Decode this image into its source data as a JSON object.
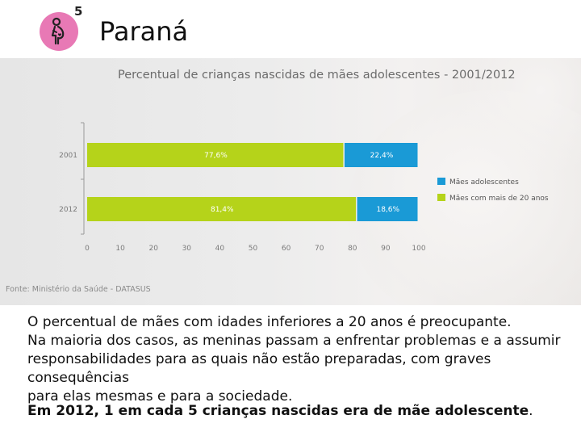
{
  "header": {
    "number": "5",
    "title": "Paraná",
    "icon": "pregnant-woman-icon",
    "icon_color": "#e879b5"
  },
  "source": "Fonte: Ministério da Saúde - DATASUS",
  "chart_data": {
    "type": "bar",
    "orientation": "horizontal",
    "stacked": true,
    "title": "Percentual de crianças nascidas de mães adolescentes - 2001/2012",
    "categories": [
      "2001",
      "2012"
    ],
    "xlim": [
      0,
      100
    ],
    "xticks": [
      0,
      10,
      20,
      30,
      40,
      50,
      60,
      70,
      80,
      90,
      100
    ],
    "legend_position": "right",
    "series": [
      {
        "name": "Mães com mais de 20 anos",
        "color": "#b5d31a",
        "values": [
          77.6,
          81.4
        ],
        "labels": [
          "77,6%",
          "81,4%"
        ]
      },
      {
        "name": "Mães adolescentes",
        "color": "#1a9ad6",
        "values": [
          22.4,
          18.6
        ],
        "labels": [
          "22,4%",
          "18,6%"
        ]
      }
    ],
    "legend_order": [
      1,
      0
    ]
  },
  "body": {
    "line1": "O percentual de mães com idades inferiores a 20 anos é preocupante.",
    "line2": "Na maioria dos casos, as meninas passam a enfrentar problemas e a assumir",
    "line3": "responsabilidades para as quais não estão preparadas, com graves consequências",
    "line4": "para elas mesmas e para a sociedade."
  },
  "highlight": {
    "text": "Em 2012, 1 em cada 5 crianças nascidas era de mãe adolescente",
    "period": "."
  }
}
